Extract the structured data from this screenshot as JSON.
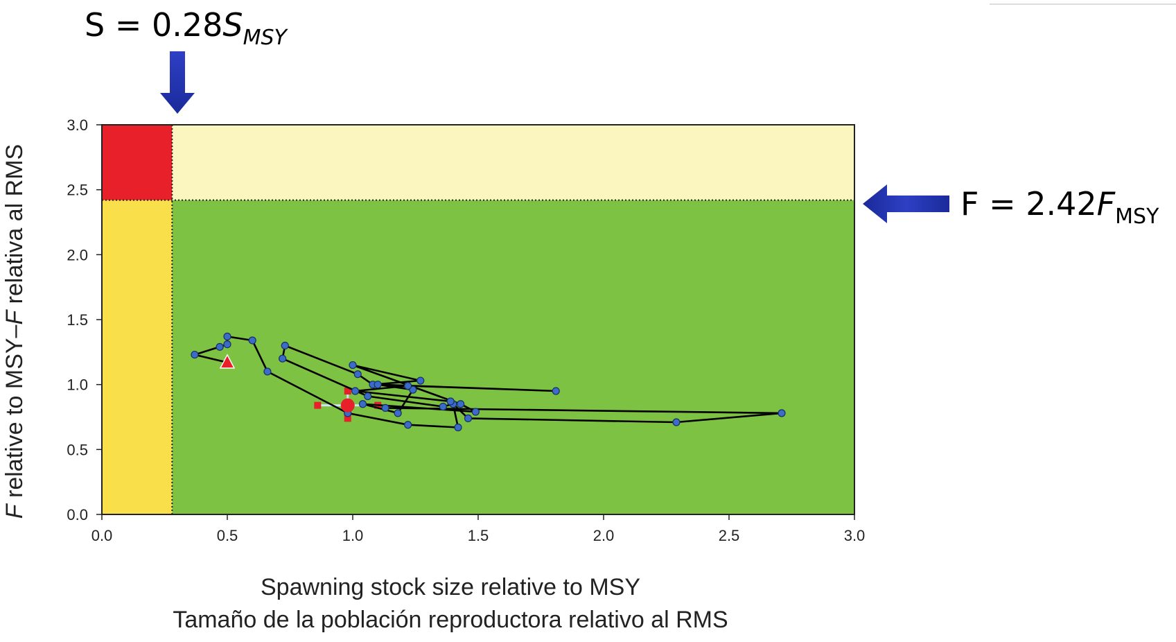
{
  "chart_data": {
    "type": "scatter",
    "xlabel": "Spawning stock size relative to MSY",
    "xlabel_es": "Tamaño de la población reproductora relativo al RMS",
    "ylabel_parts": [
      "F",
      " relative to MSY–",
      "F",
      " relativa al RMS"
    ],
    "xlim": [
      0,
      3
    ],
    "ylim": [
      0,
      3
    ],
    "x_ticks": [
      "0.0",
      "0.5",
      "1.0",
      "1.5",
      "2.0",
      "2.5",
      "3.0"
    ],
    "y_ticks": [
      "0.0",
      "0.5",
      "1.0",
      "1.5",
      "2.0",
      "2.5",
      "3.0"
    ],
    "thresholds": {
      "s_limit": 0.28,
      "f_limit": 2.42
    },
    "zone_colors": {
      "low_s_high_f": "#e8202a",
      "low_s_low_f": "#f9e04b",
      "high_s_high_f": "#fbf6c0",
      "high_s_low_f": "#7dc243"
    },
    "annotations": {
      "s_label": {
        "prefix": "S = 0.28",
        "var": "S",
        "sub": "MSY"
      },
      "f_label": {
        "prefix": "F = 2.42",
        "var": "F",
        "sub": "MSY"
      }
    },
    "trajectory": [
      [
        0.5,
        1.17
      ],
      [
        0.37,
        1.23
      ],
      [
        0.47,
        1.29
      ],
      [
        0.5,
        1.31
      ],
      [
        0.5,
        1.37
      ],
      [
        0.6,
        1.34
      ],
      [
        0.66,
        1.1
      ],
      [
        0.98,
        0.78
      ],
      [
        1.22,
        0.69
      ],
      [
        1.42,
        0.67
      ],
      [
        1.4,
        0.85
      ],
      [
        1.36,
        0.83
      ],
      [
        1.06,
        0.91
      ],
      [
        0.72,
        1.2
      ],
      [
        0.73,
        1.3
      ],
      [
        1.02,
        1.08
      ],
      [
        1.08,
        1.0
      ],
      [
        1.27,
        1.03
      ],
      [
        1.0,
        1.15
      ],
      [
        1.43,
        0.85
      ],
      [
        1.49,
        0.79
      ],
      [
        1.04,
        0.85
      ],
      [
        1.18,
        0.78
      ],
      [
        1.24,
        0.96
      ],
      [
        1.1,
        1.0
      ],
      [
        1.81,
        0.95
      ],
      [
        1.22,
        0.99
      ],
      [
        1.01,
        0.95
      ],
      [
        1.39,
        0.87
      ],
      [
        1.46,
        0.74
      ],
      [
        2.29,
        0.71
      ],
      [
        2.71,
        0.78
      ],
      [
        1.13,
        0.82
      ]
    ],
    "start_marker": {
      "x": 0.5,
      "y": 1.17,
      "shape": "triangle",
      "color": "#e8202a"
    },
    "current_estimate": {
      "x": 0.98,
      "y": 0.84,
      "color": "#e8202a",
      "x_ci": [
        0.86,
        1.1
      ],
      "y_ci": [
        0.74,
        0.95
      ]
    },
    "point_color": "#3a6cc8",
    "line_color": "#000000"
  }
}
